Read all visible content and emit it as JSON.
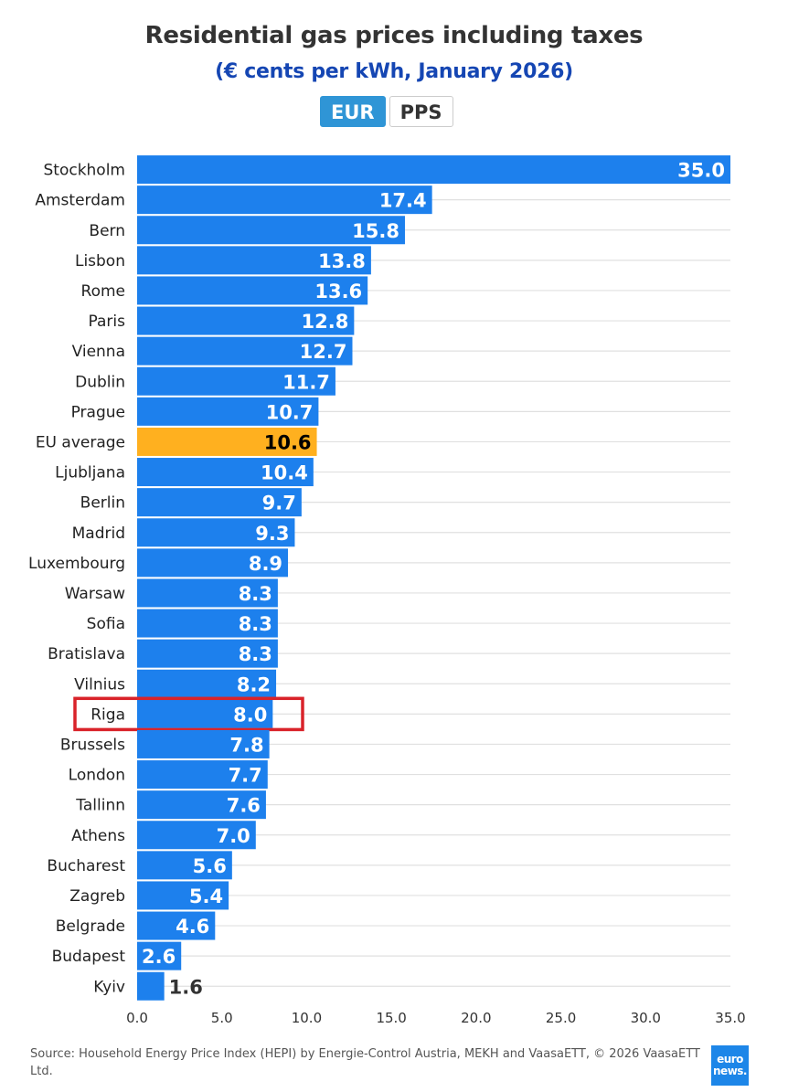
{
  "chart_data": {
    "type": "bar",
    "orientation": "horizontal",
    "title": "Residential gas prices including taxes",
    "subtitle": "(€ cents per kWh, January 2026)",
    "toggle": [
      "EUR",
      "PPS"
    ],
    "active_toggle": "EUR",
    "categories": [
      "Stockholm",
      "Amsterdam",
      "Bern",
      "Lisbon",
      "Rome",
      "Paris",
      "Vienna",
      "Dublin",
      "Prague",
      "EU average",
      "Ljubljana",
      "Berlin",
      "Madrid",
      "Luxembourg",
      "Warsaw",
      "Sofia",
      "Bratislava",
      "Vilnius",
      "Riga",
      "Brussels",
      "London",
      "Tallinn",
      "Athens",
      "Bucharest",
      "Zagreb",
      "Belgrade",
      "Budapest",
      "Kyiv"
    ],
    "values": [
      35.0,
      17.4,
      15.8,
      13.8,
      13.6,
      12.8,
      12.7,
      11.7,
      10.7,
      10.6,
      10.4,
      9.7,
      9.3,
      8.9,
      8.3,
      8.3,
      8.3,
      8.2,
      8.0,
      7.8,
      7.7,
      7.6,
      7.0,
      5.6,
      5.4,
      4.6,
      2.6,
      1.6
    ],
    "labels": [
      "35.0",
      "17.4",
      "15.8",
      "13.8",
      "13.6",
      "12.8",
      "12.7",
      "11.7",
      "10.7",
      "10.6",
      "10.4",
      "9.7",
      "9.3",
      "8.9",
      "8.3",
      "8.3",
      "8.3",
      "8.2",
      "8.0",
      "7.8",
      "7.7",
      "7.6",
      "7.0",
      "5.6",
      "5.4",
      "4.6",
      "2.6",
      "1.6"
    ],
    "highlight_category": "EU average",
    "boxed_category": "Riga",
    "xlim": [
      0,
      35
    ],
    "xticks": [
      "0.0",
      "5.0",
      "10.0",
      "15.0",
      "20.0",
      "25.0",
      "30.0",
      "35.0"
    ],
    "xlabel": "",
    "ylabel": "",
    "grid": true
  },
  "colors": {
    "bar": "#1d80ed",
    "highlight": "#ffb01f",
    "box": "#d9232a",
    "label_inside": "#ffffff",
    "label_highlight": "#000000",
    "label_outside": "#333333",
    "grid": "#e0e0e0"
  },
  "source": "Source: Household Energy Price Index (HEPI) by Energie-Control Austria, MEKH and VaasaETT, © 2026 VaasaETT Ltd.",
  "logo": {
    "line1": "euro",
    "line2": "news."
  }
}
